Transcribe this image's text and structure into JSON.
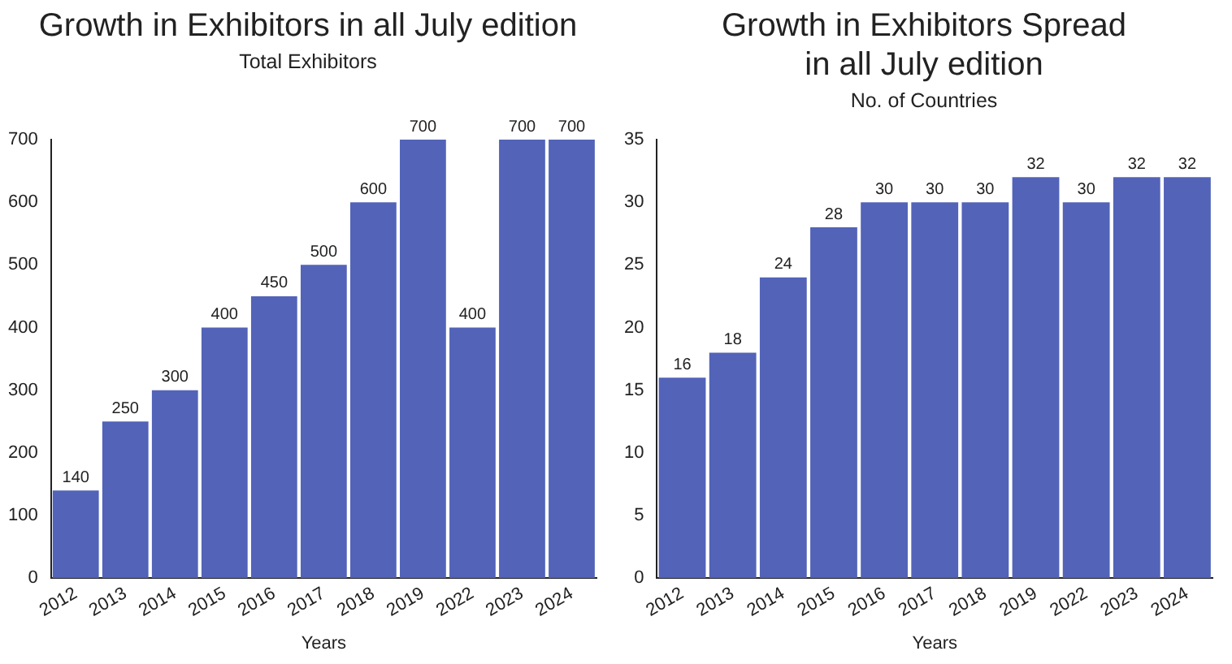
{
  "chart_data": [
    {
      "type": "bar",
      "title": "Growth in Exhibitors in all July edition",
      "subtitle": "Total Exhibitors",
      "xlabel": "Years",
      "categories": [
        "2012",
        "2013",
        "2014",
        "2015",
        "2016",
        "2017",
        "2018",
        "2019",
        "2022",
        "2023",
        "2024"
      ],
      "series": [
        {
          "color": "#5263b8",
          "values": [
            140,
            250,
            300,
            400,
            450,
            500,
            600,
            700,
            400,
            700,
            700
          ]
        }
      ],
      "ylim": [
        0,
        700
      ],
      "yticks": [
        0,
        100,
        200,
        300,
        400,
        500,
        600,
        700
      ],
      "grid": false,
      "legend": false,
      "data_labels": true
    },
    {
      "type": "bar",
      "title": "Growth in Exhibitors Spread in all July edition",
      "subtitle": "No. of Countries",
      "xlabel": "Years",
      "categories": [
        "2012",
        "2013",
        "2014",
        "2015",
        "2016",
        "2017",
        "2018",
        "2019",
        "2022",
        "2023",
        "2024"
      ],
      "series": [
        {
          "color": "#5263b8",
          "values": [
            16,
            18,
            24,
            28,
            30,
            30,
            30,
            32,
            30,
            32,
            32
          ]
        }
      ],
      "ylim": [
        0,
        35
      ],
      "yticks": [
        0,
        5,
        10,
        15,
        20,
        25,
        30,
        35
      ],
      "grid": false,
      "legend": false,
      "data_labels": true
    }
  ]
}
